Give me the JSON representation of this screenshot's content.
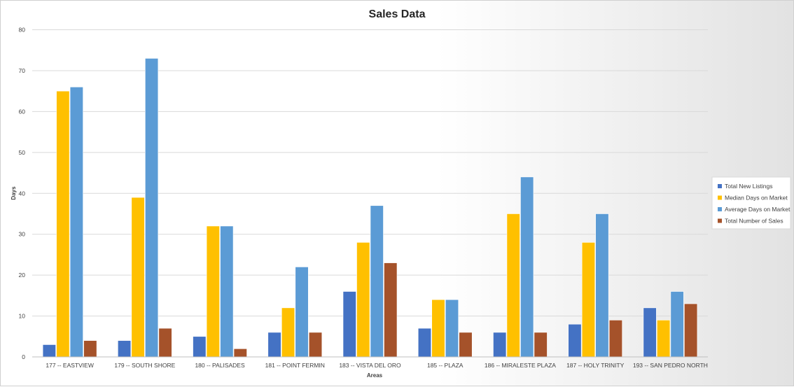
{
  "chart_data": {
    "type": "bar",
    "title": "Sales Data",
    "xlabel": "Areas",
    "ylabel": "Days",
    "ylim": [
      0,
      80
    ],
    "yticks": [
      0,
      10,
      20,
      30,
      40,
      50,
      60,
      70,
      80
    ],
    "grid": true,
    "legend_position": "right",
    "categories": [
      "177 -- EASTVIEW",
      "179 -- SOUTH SHORE",
      "180 -- PALISADES",
      "181 -- POINT FERMIN",
      "183 -- VISTA DEL ORO",
      "185 -- PLAZA",
      "186 -- MIRALESTE PLAZA",
      "187 -- HOLY TRINITY",
      "193 -- SAN PEDRO NORTH"
    ],
    "series": [
      {
        "name": "Total New Listings",
        "color": "#4472c4",
        "values": [
          3,
          4,
          5,
          6,
          16,
          7,
          6,
          8,
          12
        ]
      },
      {
        "name": "Median Days on Market",
        "color": "#ffc000",
        "values": [
          65,
          39,
          32,
          12,
          28,
          14,
          35,
          28,
          9
        ]
      },
      {
        "name": "Average Days on Market",
        "color": "#5b9bd5",
        "values": [
          66,
          73,
          32,
          22,
          37,
          14,
          44,
          35,
          16
        ]
      },
      {
        "name": "Total Number of Sales",
        "color": "#a5522a",
        "values": [
          4,
          7,
          2,
          6,
          23,
          6,
          6,
          9,
          13
        ]
      }
    ]
  }
}
